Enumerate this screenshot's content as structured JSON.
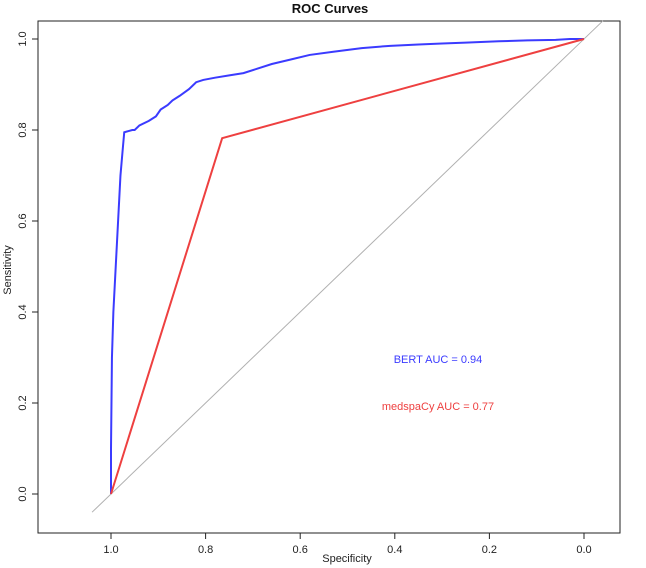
{
  "chart_data": {
    "type": "line",
    "title": "ROC Curves",
    "xlabel": "Specificity",
    "ylabel": "Sensitivity",
    "xlim": [
      1.0,
      0.0
    ],
    "ylim": [
      0.0,
      1.0
    ],
    "x_reversed": true,
    "x_ticks": [
      "1.0",
      "0.8",
      "0.6",
      "0.4",
      "0.2",
      "0.0"
    ],
    "y_ticks": [
      "0.0",
      "0.2",
      "0.4",
      "0.6",
      "0.8",
      "1.0"
    ],
    "grid": false,
    "reference_line": {
      "color": "#b0b0b0",
      "points": [
        [
          1.04,
          -0.04
        ],
        [
          -0.04,
          1.04
        ]
      ]
    },
    "series": [
      {
        "color": "#3b3bff",
        "points": [
          [
            1.0,
            0.0
          ],
          [
            1.0,
            0.1
          ],
          [
            0.998,
            0.3
          ],
          [
            0.995,
            0.4
          ],
          [
            0.99,
            0.5
          ],
          [
            0.985,
            0.6
          ],
          [
            0.98,
            0.7
          ],
          [
            0.975,
            0.76
          ],
          [
            0.972,
            0.795
          ],
          [
            0.955,
            0.8
          ],
          [
            0.95,
            0.8
          ],
          [
            0.94,
            0.81
          ],
          [
            0.92,
            0.82
          ],
          [
            0.905,
            0.83
          ],
          [
            0.895,
            0.845
          ],
          [
            0.88,
            0.855
          ],
          [
            0.87,
            0.865
          ],
          [
            0.855,
            0.875
          ],
          [
            0.835,
            0.89
          ],
          [
            0.82,
            0.905
          ],
          [
            0.805,
            0.91
          ],
          [
            0.78,
            0.915
          ],
          [
            0.75,
            0.92
          ],
          [
            0.72,
            0.925
          ],
          [
            0.69,
            0.935
          ],
          [
            0.66,
            0.945
          ],
          [
            0.62,
            0.955
          ],
          [
            0.58,
            0.965
          ],
          [
            0.53,
            0.972
          ],
          [
            0.47,
            0.98
          ],
          [
            0.41,
            0.985
          ],
          [
            0.35,
            0.988
          ],
          [
            0.3,
            0.99
          ],
          [
            0.25,
            0.992
          ],
          [
            0.18,
            0.995
          ],
          [
            0.12,
            0.997
          ],
          [
            0.06,
            0.998
          ],
          [
            0.03,
            1.0
          ],
          [
            0.0,
            1.0
          ]
        ]
      },
      {
        "color": "#ee4040",
        "points": [
          [
            1.0,
            0.0
          ],
          [
            0.765,
            0.782
          ],
          [
            0.0,
            1.0
          ]
        ]
      }
    ],
    "annotations": [
      {
        "text": "BERT AUC = 0.94",
        "color": "#3b3bff"
      },
      {
        "text": "medspaCy AUC = 0.77",
        "color": "#ee4040"
      }
    ]
  }
}
